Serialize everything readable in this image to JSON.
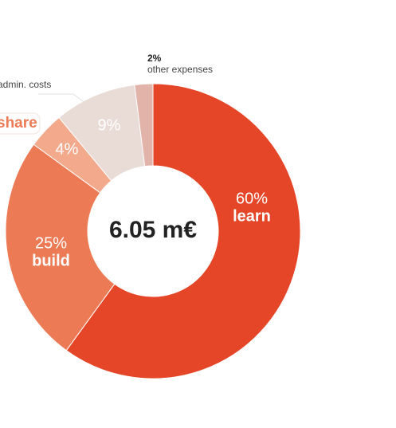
{
  "chart_data": {
    "type": "donut",
    "center_label": "6.05 m€",
    "categories": [
      "learn",
      "build",
      "share",
      "admin. costs",
      "other expenses"
    ],
    "values": [
      60,
      25,
      4,
      9,
      2
    ],
    "value_labels": [
      "60%",
      "25%",
      "4%",
      "9%",
      "2%"
    ],
    "colors": [
      "#e54628",
      "#ec7a54",
      "#f3a98c",
      "#e9dbd6",
      "#e2b3a9"
    ]
  }
}
